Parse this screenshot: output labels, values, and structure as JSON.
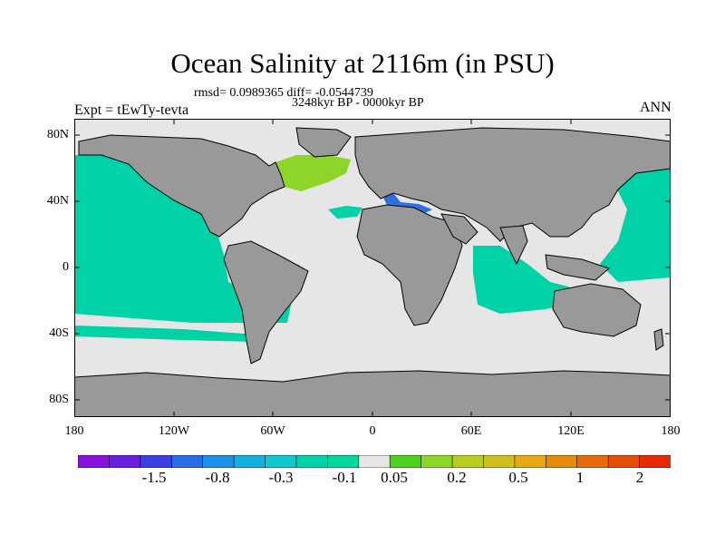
{
  "title": "Ocean Salinity at 2116m (in PSU)",
  "stats_line": "rmsd= 0.0989365 diff= -0.0544739",
  "period": "3248kyr BP - 0000kyr BP",
  "experiment": "Expt = tEwTy-tevta",
  "season": "ANN",
  "lat_labels": [
    "80N",
    "40N",
    "0",
    "40S",
    "80S"
  ],
  "lon_labels": [
    "180",
    "120W",
    "60W",
    "0",
    "60E",
    "120E",
    "180"
  ],
  "colors": {
    "land": "#999999",
    "ocean_neutral": "#e6e6e6",
    "ocean_slight_neg": "#00d2a8",
    "ocean_pos": "#8ed52a",
    "ocean_neg": "#2f6fe0",
    "coast": "#000000"
  },
  "colorbar": {
    "colors": [
      "#8a12e0",
      "#6a1ee0",
      "#3c3ee6",
      "#2a6ee6",
      "#1e8fe6",
      "#14b0e0",
      "#10c8d0",
      "#00d2a8",
      "#00d79a",
      "#e6e6e6",
      "#4cd21e",
      "#8ed52a",
      "#b6cc1e",
      "#cfbf1e",
      "#e6a814",
      "#e68a0a",
      "#e66a0a",
      "#e64c0a",
      "#e62a06"
    ],
    "labels": [
      "-1.5",
      "-0.8",
      "-0.3",
      "-0.1",
      "0.05",
      "0.2",
      "0.5",
      "1",
      "2"
    ]
  }
}
